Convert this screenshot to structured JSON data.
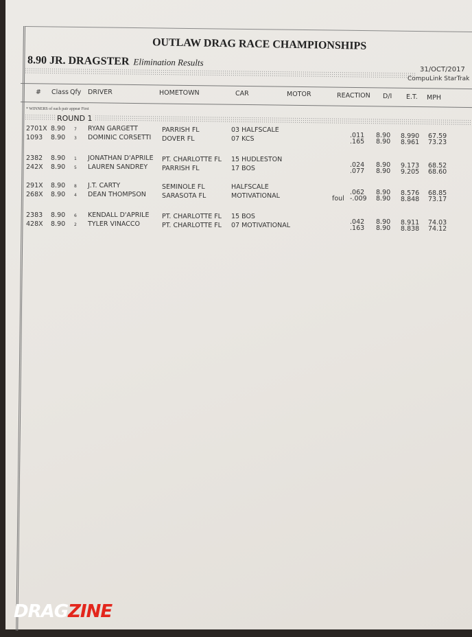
{
  "document": {
    "title": "OUTLAW DRAG RACE CHAMPIONSHIPS",
    "class_name": "8.90 JR. DRAGSTER",
    "subtitle": "Elimination Results",
    "date": "31/OCT/2017",
    "system": "CompuLink StarTrak",
    "columns": [
      "#",
      "Class",
      "Qfy",
      "DRIVER",
      "HOMETOWN",
      "CAR",
      "MOTOR",
      "REACTION",
      "D/I",
      "E.T.",
      "MPH"
    ],
    "note": "* WINNERS of each pair appear First",
    "round_label": "ROUND 1",
    "rows": [
      {
        "num": "2701X",
        "cls": "8.90",
        "qfy": "7",
        "driver": "RYAN GARGETT",
        "hometown": "PARRISH FL",
        "car": "03 HALFSCALE",
        "foul": "",
        "reaction": ".011",
        "di": "8.90",
        "et": "8.990",
        "mph": "67.59"
      },
      {
        "num": "1093",
        "cls": "8.90",
        "qfy": "3",
        "driver": "DOMINIC CORSETTI",
        "hometown": "DOVER FL",
        "car": "07 KCS",
        "foul": "",
        "reaction": ".165",
        "di": "8.90",
        "et": "8.961",
        "mph": "73.23"
      },
      {
        "num": "2382",
        "cls": "8.90",
        "qfy": "1",
        "driver": "JONATHAN D'APRILE",
        "hometown": "PT. CHARLOTTE FL",
        "car": "15 HUDLESTON",
        "foul": "",
        "reaction": ".024",
        "di": "8.90",
        "et": "9.173",
        "mph": "68.52"
      },
      {
        "num": "242X",
        "cls": "8.90",
        "qfy": "5",
        "driver": "LAUREN SANDREY",
        "hometown": "PARRISH FL",
        "car": "17 BOS",
        "foul": "",
        "reaction": ".077",
        "di": "8.90",
        "et": "9.205",
        "mph": "68.60"
      },
      {
        "num": "291X",
        "cls": "8.90",
        "qfy": "8",
        "driver": "J.T. CARTY",
        "hometown": "SEMINOLE FL",
        "car": "HALFSCALE",
        "foul": "",
        "reaction": ".062",
        "di": "8.90",
        "et": "8.576",
        "mph": "68.85"
      },
      {
        "num": "268X",
        "cls": "8.90",
        "qfy": "4",
        "driver": "DEAN THOMPSON",
        "hometown": "SARASOTA FL",
        "car": "MOTIVATIONAL",
        "foul": "foul",
        "reaction": "-.009",
        "di": "8.90",
        "et": "8.848",
        "mph": "73.17"
      },
      {
        "num": "2383",
        "cls": "8.90",
        "qfy": "6",
        "driver": "KENDALL D'APRILE",
        "hometown": "PT. CHARLOTTE FL",
        "car": "15 BOS",
        "foul": "",
        "reaction": ".042",
        "di": "8.90",
        "et": "8.911",
        "mph": "74.03"
      },
      {
        "num": "428X",
        "cls": "8.90",
        "qfy": "2",
        "driver": "TYLER VINACCO",
        "hometown": "PT. CHARLOTTE FL",
        "car": "07 MOTIVATIONAL",
        "foul": "",
        "reaction": ".163",
        "di": "8.90",
        "et": "8.838",
        "mph": "74.12"
      }
    ]
  },
  "watermark": {
    "part1": "DRAG",
    "part2": "ZINE",
    "accent": "#e3261c"
  }
}
